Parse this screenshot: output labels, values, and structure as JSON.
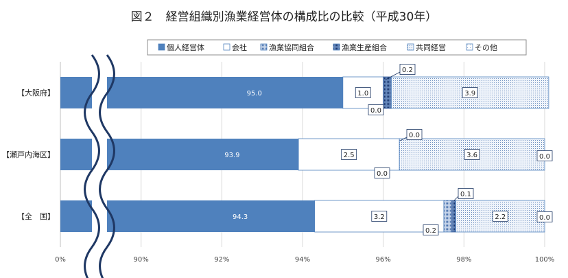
{
  "chart_data": {
    "type": "bar",
    "orientation": "horizontal",
    "stacked": true,
    "title": "図２　経営組織別漁業経営体の構成比の比較（平成30年）",
    "categories": [
      "【大阪府】",
      "【瀬戸内海区】",
      "【全　国】"
    ],
    "series": [
      {
        "name": "個人経営体",
        "values": [
          95.0,
          93.9,
          94.3
        ],
        "labels": [
          "95.0",
          "93.9",
          "94.3"
        ]
      },
      {
        "name": "会社",
        "values": [
          1.0,
          2.5,
          3.2
        ],
        "labels": [
          "1.0",
          "2.5",
          "3.2"
        ]
      },
      {
        "name": "漁業協同組合",
        "values": [
          0.0,
          0.0,
          0.2
        ],
        "labels": [
          "0.0",
          "0.0",
          "0.2"
        ]
      },
      {
        "name": "漁業生産組合",
        "values": [
          0.2,
          0.0,
          0.1
        ],
        "labels": [
          "0.2",
          "0.0",
          "0.1"
        ]
      },
      {
        "name": "共同経営",
        "values": [
          3.9,
          3.6,
          2.2
        ],
        "labels": [
          "3.9",
          "3.6",
          "2.2"
        ]
      },
      {
        "name": "その他",
        "values": [
          0.0,
          0.0,
          0.0
        ],
        "labels": [
          "",
          "0.0",
          "0.0"
        ]
      }
    ],
    "xlim": [
      88,
      100
    ],
    "axis_break": true,
    "x_ticks": [
      "0%",
      "90%",
      "92%",
      "94%",
      "96%",
      "98%",
      "100%"
    ],
    "legend_position": "top",
    "colors": {
      "個人経営体": "#4f81bd",
      "会社": "#ffffff",
      "漁業協同組合": "#7f9fc7",
      "漁業生産組合": "#2e5597",
      "共同経営": "#dce6f2",
      "その他": "#ffffff",
      "grid": "#d9d9d9",
      "break_line": "#1f3864",
      "label_box_border": "#1f3864"
    }
  }
}
